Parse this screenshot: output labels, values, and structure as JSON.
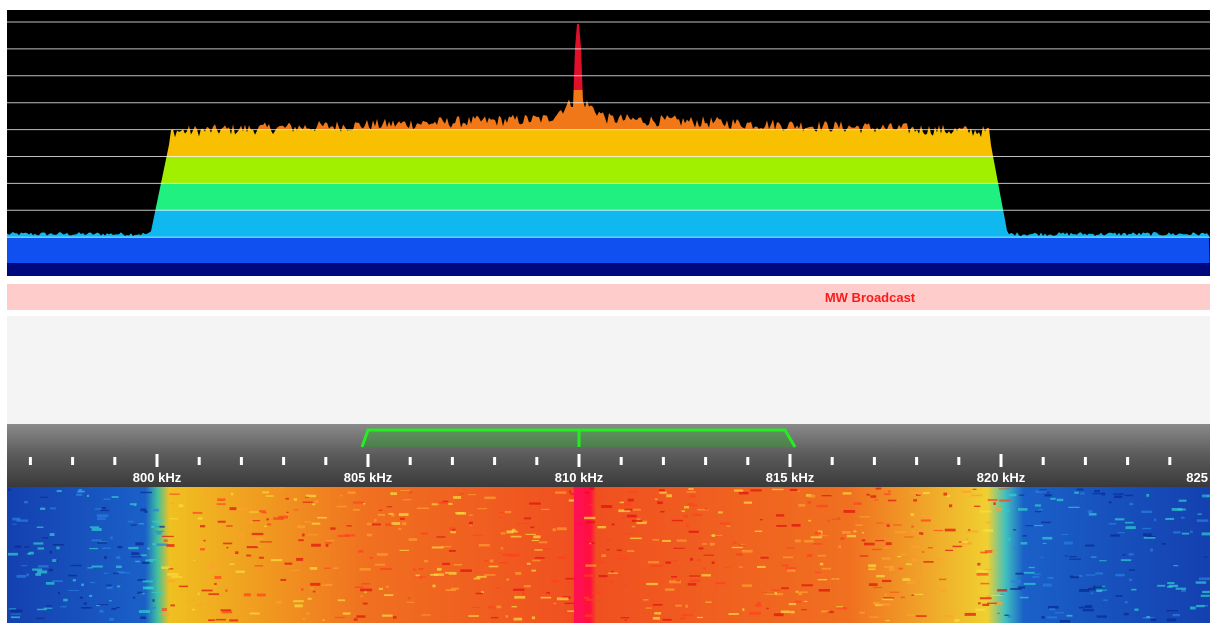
{
  "band_plan": {
    "label": "MW Broadcast"
  },
  "ruler": {
    "labels": [
      "800 kHz",
      "805 kHz",
      "810 kHz",
      "815 kHz",
      "820 kHz",
      "825"
    ]
  }
}
